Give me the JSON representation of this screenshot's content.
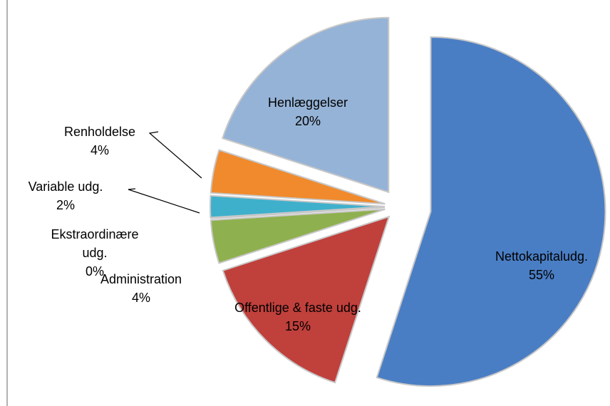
{
  "chart_data": {
    "type": "pie",
    "categories": [
      "Nettokapitaludg.",
      "Offentlige & faste udg.",
      "Administration",
      "Ekstraordinære udg.",
      "Variable udg.",
      "Renholdelse",
      "Henlæggelser"
    ],
    "values": [
      55,
      15,
      4,
      0,
      2,
      4,
      20
    ],
    "value_labels": [
      "55%",
      "15%",
      "4%",
      "0%",
      "2%",
      "4%",
      "20%"
    ],
    "colors": [
      "#4a7ec4",
      "#c0403c",
      "#8fb04e",
      "#8064a2",
      "#3fb0cc",
      "#f08a2c",
      "#95b3d7"
    ]
  }
}
